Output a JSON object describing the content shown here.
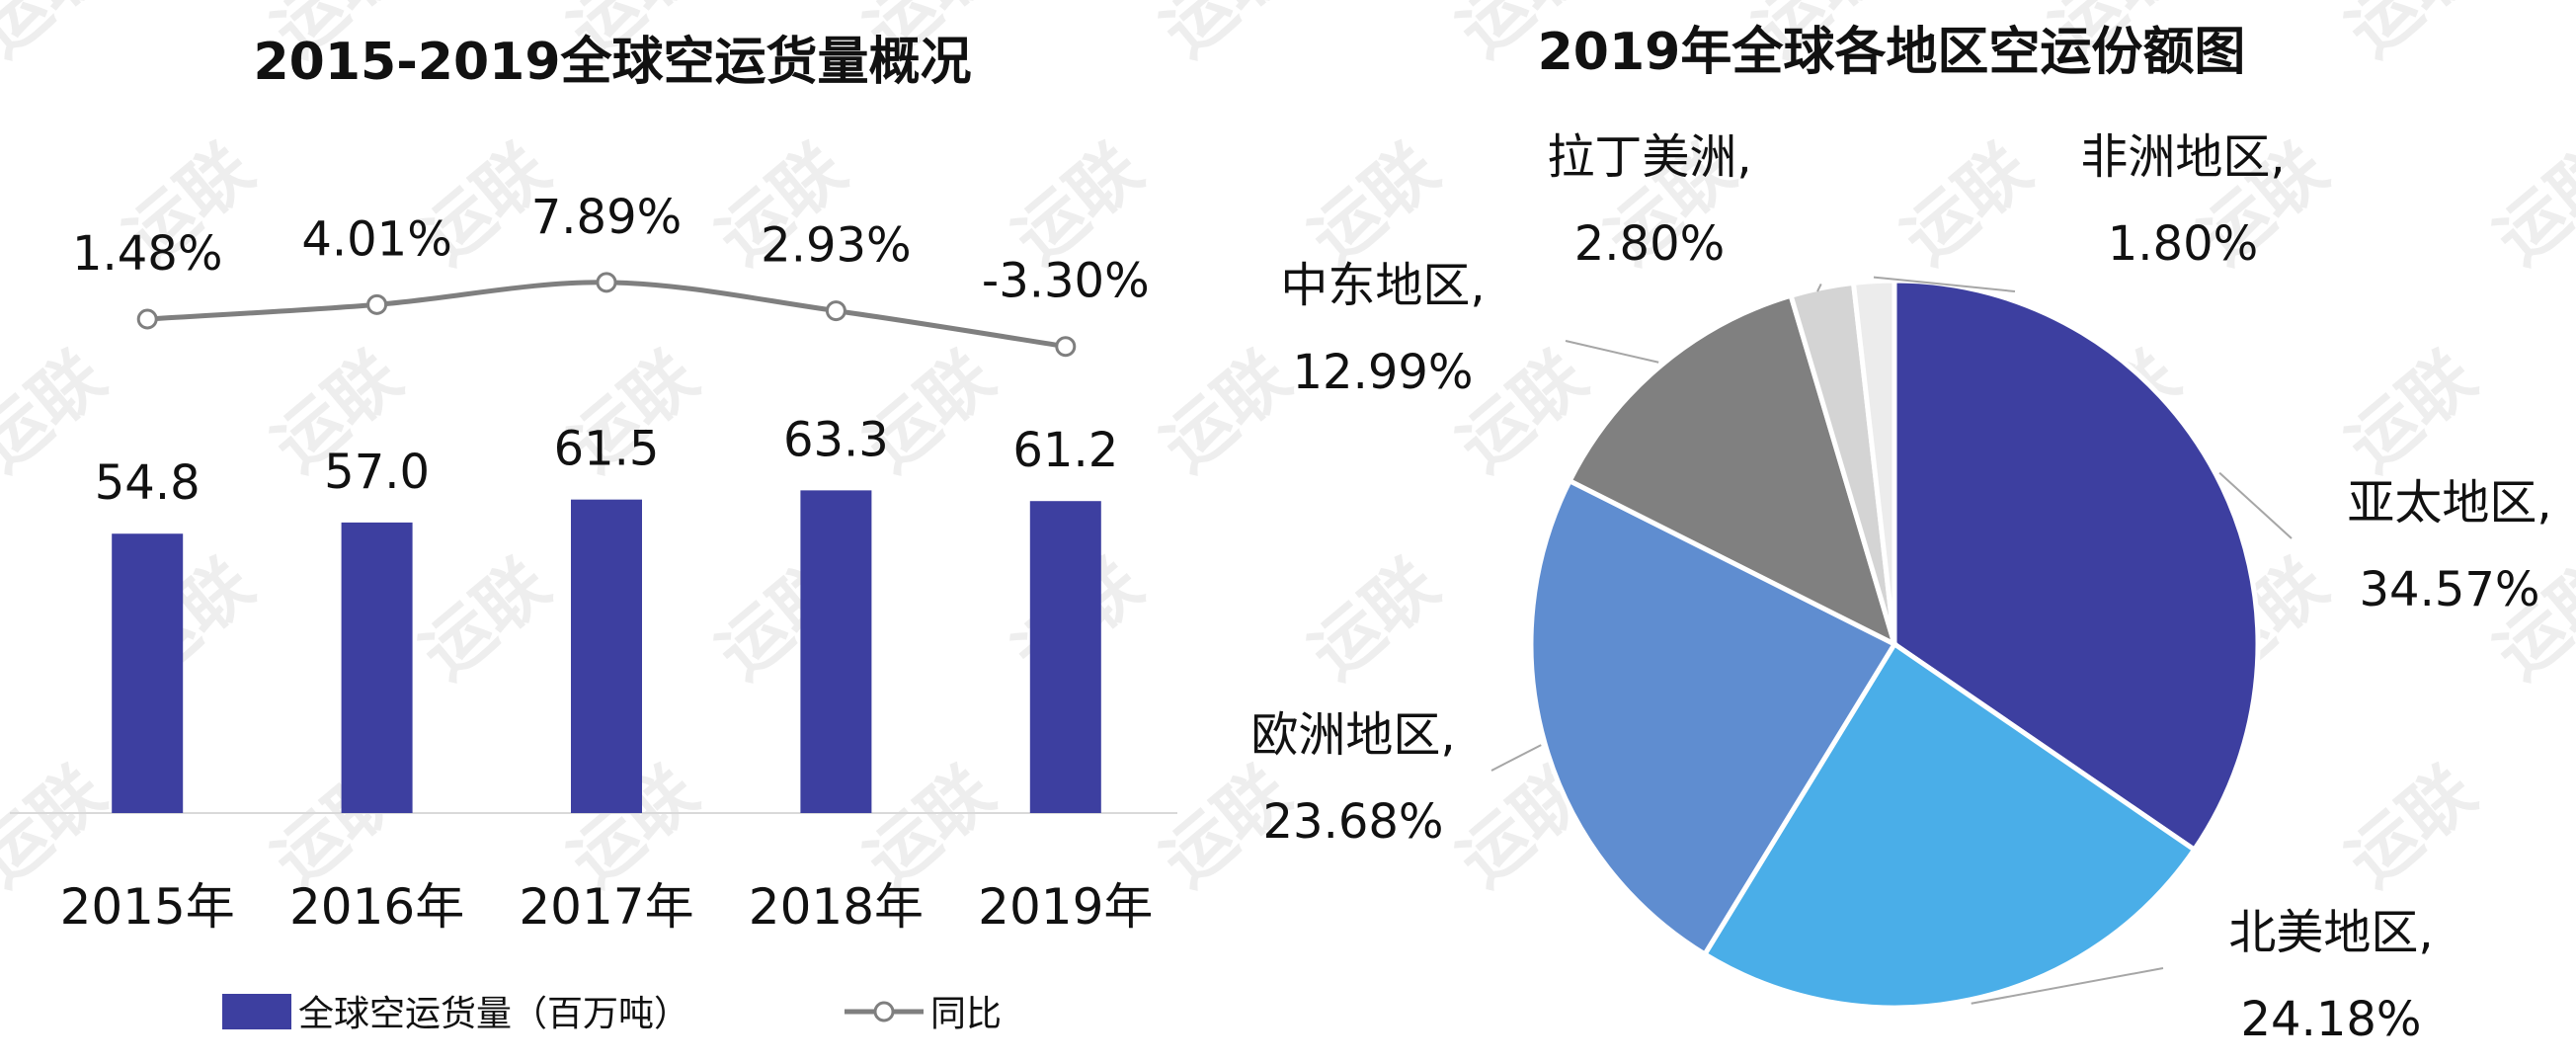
{
  "watermark": "运联",
  "chart_data": [
    {
      "type": "bar",
      "title": "2015-2019全球空运货量概况",
      "categories": [
        "2015年",
        "2016年",
        "2017年",
        "2018年",
        "2019年"
      ],
      "series": [
        {
          "name": "全球空运货量（百万吨）",
          "type": "bar",
          "values": [
            54.8,
            57.0,
            61.5,
            63.3,
            61.2
          ],
          "value_labels": [
            "54.8",
            "57.0",
            "61.5",
            "63.3",
            "61.2"
          ],
          "color": "#3d3fa0"
        },
        {
          "name": "同比",
          "type": "line",
          "values": [
            1.48,
            4.01,
            7.89,
            2.93,
            -3.3
          ],
          "value_labels": [
            "1.48%",
            "4.01%",
            "7.89%",
            "2.93%",
            "-3.30%"
          ],
          "color": "#7f7f7f"
        }
      ],
      "legend_position": "bottom",
      "grid": false
    },
    {
      "type": "pie",
      "title": "2019年全球各地区空运份额图",
      "slices": [
        {
          "name": "亚太地区,",
          "value": 34.57,
          "label": "34.57%",
          "color": "#3d3fa0"
        },
        {
          "name": "北美地区,",
          "value": 24.18,
          "label": "24.18%",
          "color": "#4aaee8"
        },
        {
          "name": "欧洲地区,",
          "value": 23.68,
          "label": "23.68%",
          "color": "#5f8dd0"
        },
        {
          "name": "中东地区,",
          "value": 12.99,
          "label": "12.99%",
          "color": "#808080"
        },
        {
          "name": "拉丁美洲,",
          "value": 2.8,
          "label": "2.80%",
          "color": "#d4d4d4"
        },
        {
          "name": "非洲地区,",
          "value": 1.8,
          "label": "1.80%",
          "color": "#ececec"
        }
      ]
    }
  ]
}
